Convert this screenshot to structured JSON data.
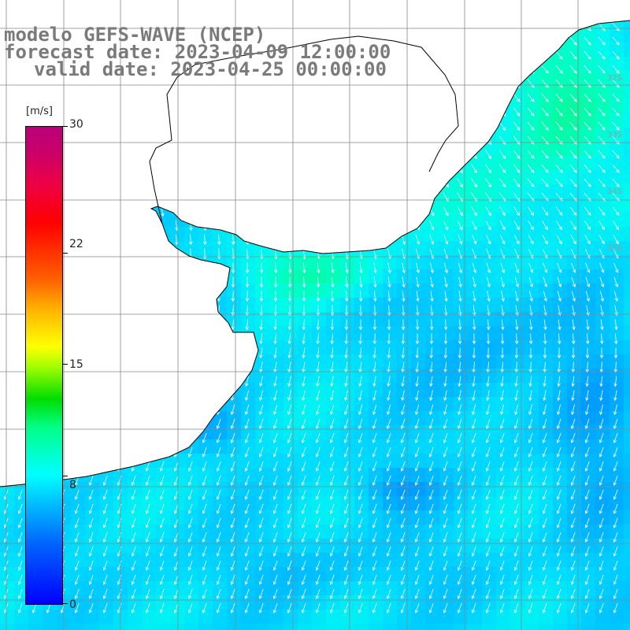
{
  "header": {
    "model_line": "modelo GEFS-WAVE (NCEP)",
    "forecast_line": "forecast date: 2023-04-09 12:00:00",
    "valid_line": "valid date: 2023-04-25 00:00:00"
  },
  "colorbar": {
    "unit": "[m/s]",
    "ticks": [
      {
        "value": 30,
        "label": "30"
      },
      {
        "value": 22,
        "label": "22"
      },
      {
        "value": 15,
        "label": "15"
      },
      {
        "value": 8,
        "label": "8"
      },
      {
        "value": 0,
        "label": "0"
      }
    ]
  },
  "map": {
    "grid_lat_labels": [
      "32S",
      "33S",
      "34S",
      "35S"
    ],
    "wind_speed_range_ms": [
      5,
      11
    ]
  },
  "colors": {
    "header_text": "#7a7a7a",
    "land": "#ffffff",
    "coastline": "#000000",
    "grid": "#888888",
    "arrows": "#ffffff"
  }
}
